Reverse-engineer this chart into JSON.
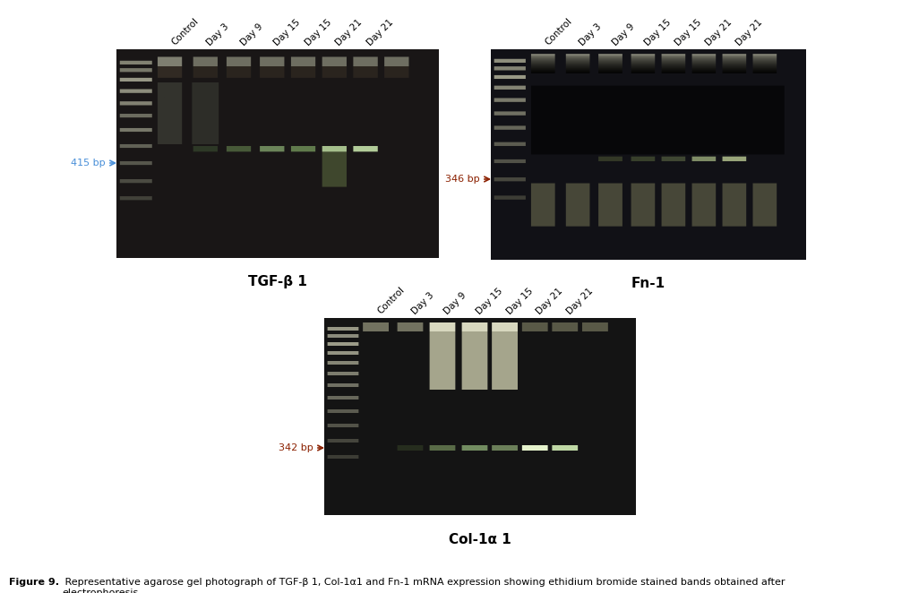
{
  "title_bold": "Figure 9.",
  "title_rest": " Representative agarose gel photograph of TGF-β 1, Col-1α1 and Fn-1 mRNA expression showing ethidium bromide stained bands obtained after\nelectrophoresis.",
  "panel_labels": [
    "TGF-β 1",
    "Fn-1",
    "Col-1α 1"
  ],
  "lane_labels": [
    "Control",
    "Day 3",
    "Day 9",
    "Day 15",
    "Day 15",
    "Day 21",
    "Day 21"
  ],
  "bp_labels": [
    "415 bp",
    "346 bp",
    "342 bp"
  ],
  "bp_arrow_color_tgf": "#4a90d9",
  "bp_arrow_color_fn": "#8B2000",
  "bp_arrow_color_col": "#8B2000",
  "background_color": "#ffffff",
  "panel_label_fontsize": 11,
  "lane_label_fontsize": 7.5,
  "bp_fontsize": 8,
  "caption_fontsize": 8
}
